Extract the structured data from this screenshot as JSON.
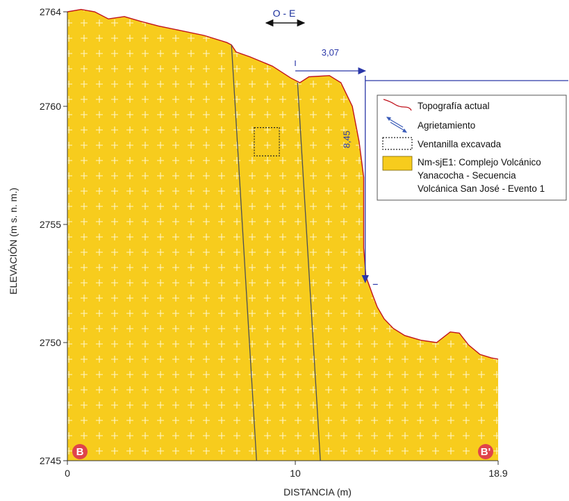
{
  "chart_data": {
    "type": "cross-section",
    "xlabel": "DISTANCIA (m)",
    "ylabel": "ELEVACIÓN (m s. n. m.)",
    "x_ticks": [
      "0",
      "10",
      "18.9"
    ],
    "y_ticks": [
      "2764",
      "2760",
      "2755",
      "2750",
      "2745"
    ],
    "xlim": [
      0,
      18.9
    ],
    "ylim": [
      2745,
      2764
    ],
    "direction_label": "O - E",
    "section_start": "B",
    "section_end": "B'",
    "topography_points": [
      [
        0,
        2764
      ],
      [
        0.6,
        2764.1
      ],
      [
        1.2,
        2764
      ],
      [
        1.8,
        2763.7
      ],
      [
        2.5,
        2763.8
      ],
      [
        3.2,
        2763.6
      ],
      [
        4.0,
        2763.4
      ],
      [
        5.0,
        2763.2
      ],
      [
        6.0,
        2763.0
      ],
      [
        7.0,
        2762.7
      ],
      [
        7.2,
        2762.6
      ],
      [
        7.4,
        2762.3
      ],
      [
        8.0,
        2762.1
      ],
      [
        9.0,
        2761.7
      ],
      [
        9.8,
        2761.2
      ],
      [
        10.2,
        2761.0
      ],
      [
        10.6,
        2761.25
      ],
      [
        11.5,
        2761.3
      ],
      [
        12.0,
        2761.0
      ],
      [
        12.5,
        2760.0
      ],
      [
        12.8,
        2758.5
      ],
      [
        13.0,
        2757.0
      ],
      [
        13.0,
        2754.0
      ],
      [
        13.1,
        2752.8
      ],
      [
        13.4,
        2752.0
      ],
      [
        13.6,
        2751.5
      ],
      [
        13.9,
        2751.0
      ],
      [
        14.3,
        2750.6
      ],
      [
        14.8,
        2750.3
      ],
      [
        15.5,
        2750.1
      ],
      [
        16.2,
        2750.0
      ],
      [
        16.8,
        2750.45
      ],
      [
        17.2,
        2750.4
      ],
      [
        17.6,
        2749.9
      ],
      [
        18.1,
        2749.5
      ],
      [
        18.6,
        2749.35
      ],
      [
        18.9,
        2749.3
      ]
    ],
    "fractures": [
      {
        "top": [
          7.2,
          2762.6
        ],
        "bottom": [
          8.3,
          2745
        ]
      },
      {
        "top": [
          10.1,
          2761.0
        ],
        "bottom": [
          11.1,
          2745
        ]
      }
    ],
    "excavated_window": {
      "x": [
        8.2,
        9.3
      ],
      "y": [
        2757.9,
        2759.1
      ]
    },
    "dimension_horizontal": {
      "value": "3,07",
      "x_from": 10.0,
      "x_to": 13.07,
      "y": 2761.5
    },
    "dimension_vertical": {
      "value": "8,45",
      "x": 13.07,
      "y_from": 2761.0,
      "y_to": 2752.55
    },
    "legend": [
      {
        "symbol": "topography-line",
        "label": "Topografía actual"
      },
      {
        "symbol": "crack-arrows",
        "label": "Agrietamiento"
      },
      {
        "symbol": "dotted-box",
        "label": "Ventanilla excavada"
      },
      {
        "symbol": "yellow-fill",
        "label": "Nm-sjE1: Complejo Volcánico",
        "label2": "Yanacocha - Secuencia",
        "label3": "Volcánica San José - Evento 1"
      }
    ],
    "colors": {
      "fill": "#f7cc1d",
      "topography": "#c0121c",
      "fracture": "#4a4f57",
      "dimension": "#2a37a8",
      "corner_marker": "#e0444a"
    }
  }
}
